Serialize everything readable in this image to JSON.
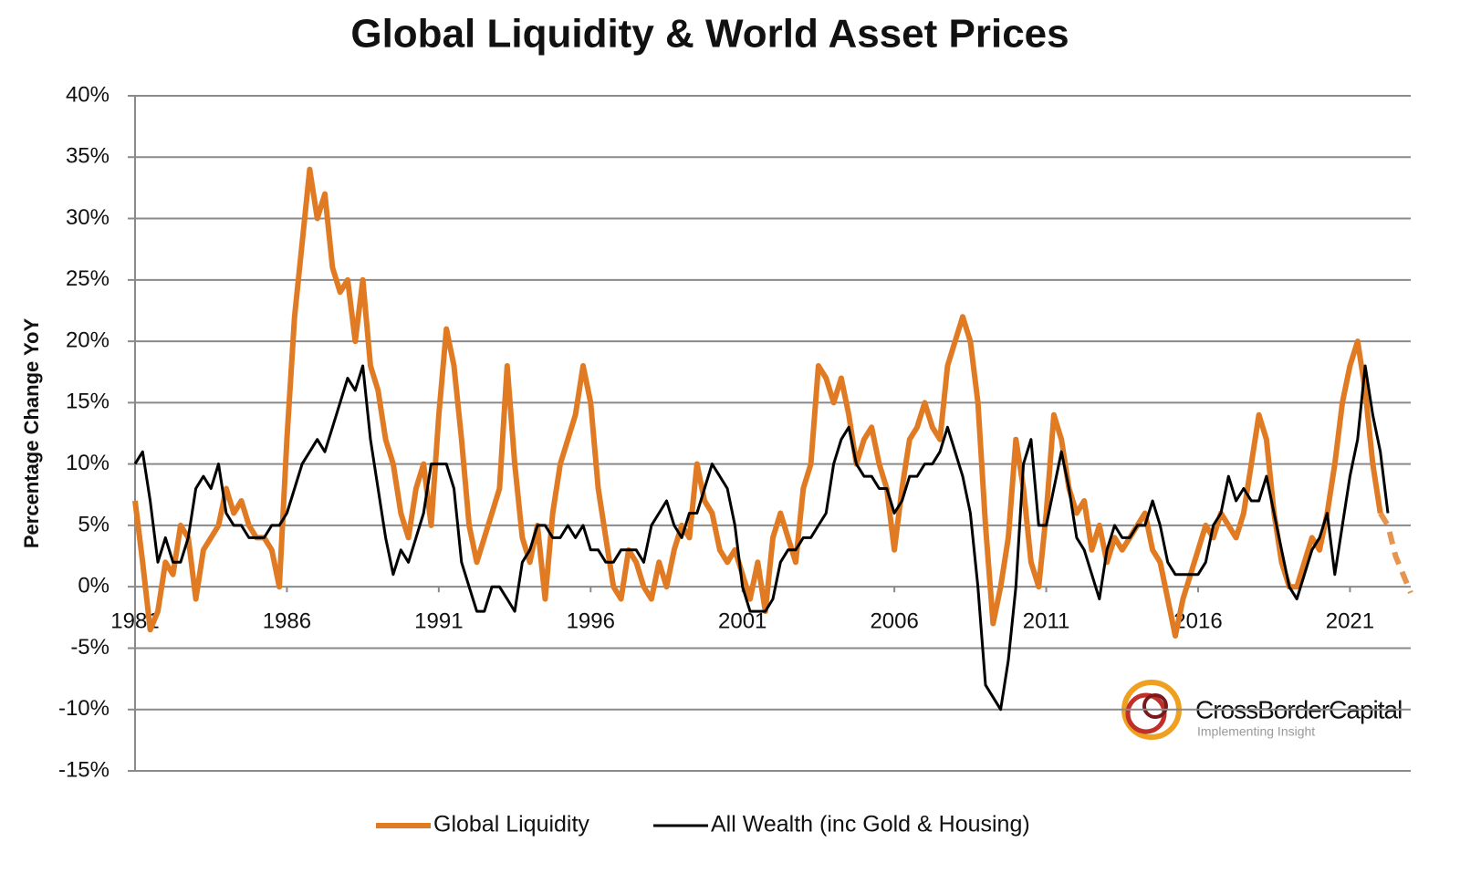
{
  "chart_data": {
    "type": "line",
    "title": "Global Liquidity & World Asset Prices",
    "y_label": "Percentage Change YoY",
    "xlim": [
      1981,
      2023
    ],
    "xticks": [
      1981,
      1986,
      1991,
      1996,
      2001,
      2006,
      2011,
      2016,
      2021
    ],
    "ylim": [
      -15,
      40
    ],
    "yticks": [
      {
        "value": 40,
        "label": "40%"
      },
      {
        "value": 35,
        "label": "35%"
      },
      {
        "value": 30,
        "label": "30%"
      },
      {
        "value": 25,
        "label": "25%"
      },
      {
        "value": 20,
        "label": "20%"
      },
      {
        "value": 15,
        "label": "15%"
      },
      {
        "value": 10,
        "label": "10%"
      },
      {
        "value": 5,
        "label": "5%"
      },
      {
        "value": 0,
        "label": "0%"
      },
      {
        "value": -5,
        "label": "-5%"
      },
      {
        "value": -10,
        "label": "-10%"
      },
      {
        "value": -15,
        "label": "-15%"
      }
    ],
    "grid": true,
    "legend": "bottom",
    "logo": {
      "name": "CrossBorderCapital",
      "tagline": "Implementing Insight"
    },
    "series": [
      {
        "name": "Global Liquidity",
        "color": "#e07b24",
        "dash_from": 2022,
        "x": [
          1981,
          1981.25,
          1981.5,
          1981.75,
          1982,
          1982.25,
          1982.5,
          1982.75,
          1983,
          1983.25,
          1983.5,
          1983.75,
          1984,
          1984.25,
          1984.5,
          1984.75,
          1985,
          1985.25,
          1985.5,
          1985.75,
          1986,
          1986.25,
          1986.5,
          1986.75,
          1987,
          1987.25,
          1987.5,
          1987.75,
          1988,
          1988.25,
          1988.5,
          1988.75,
          1989,
          1989.25,
          1989.5,
          1989.75,
          1990,
          1990.25,
          1990.5,
          1990.75,
          1991,
          1991.25,
          1991.5,
          1991.75,
          1992,
          1992.25,
          1992.5,
          1992.75,
          1993,
          1993.25,
          1993.5,
          1993.75,
          1994,
          1994.25,
          1994.5,
          1994.75,
          1995,
          1995.25,
          1995.5,
          1995.75,
          1996,
          1996.25,
          1996.5,
          1996.75,
          1997,
          1997.25,
          1997.5,
          1997.75,
          1998,
          1998.25,
          1998.5,
          1998.75,
          1999,
          1999.25,
          1999.5,
          1999.75,
          2000,
          2000.25,
          2000.5,
          2000.75,
          2001,
          2001.25,
          2001.5,
          2001.75,
          2002,
          2002.25,
          2002.5,
          2002.75,
          2003,
          2003.25,
          2003.5,
          2003.75,
          2004,
          2004.25,
          2004.5,
          2004.75,
          2005,
          2005.25,
          2005.5,
          2005.75,
          2006,
          2006.25,
          2006.5,
          2006.75,
          2007,
          2007.25,
          2007.5,
          2007.75,
          2008,
          2008.25,
          2008.5,
          2008.75,
          2009,
          2009.25,
          2009.5,
          2009.75,
          2010,
          2010.25,
          2010.5,
          2010.75,
          2011,
          2011.25,
          2011.5,
          2011.75,
          2012,
          2012.25,
          2012.5,
          2012.75,
          2013,
          2013.25,
          2013.5,
          2013.75,
          2014,
          2014.25,
          2014.5,
          2014.75,
          2015,
          2015.25,
          2015.5,
          2015.75,
          2016,
          2016.25,
          2016.5,
          2016.75,
          2017,
          2017.25,
          2017.5,
          2017.75,
          2018,
          2018.25,
          2018.5,
          2018.75,
          2019,
          2019.25,
          2019.5,
          2019.75,
          2020,
          2020.25,
          2020.5,
          2020.75,
          2021,
          2021.25,
          2021.5,
          2021.75,
          2022,
          2022.25,
          2022.5,
          2022.75,
          2023
        ],
        "values": [
          7,
          2,
          -3.5,
          -2,
          2,
          1,
          5,
          4,
          -1,
          3,
          4,
          5,
          8,
          6,
          7,
          5,
          4,
          4,
          3,
          0,
          12,
          22,
          28,
          34,
          30,
          32,
          26,
          24,
          25,
          20,
          25,
          18,
          16,
          12,
          10,
          6,
          4,
          8,
          10,
          5,
          14,
          21,
          18,
          12,
          5,
          2,
          4,
          6,
          8,
          18,
          10,
          4,
          2,
          5,
          -1,
          6,
          10,
          12,
          14,
          18,
          15,
          8,
          4,
          0,
          -1,
          3,
          2,
          0,
          -1,
          2,
          0,
          3,
          5,
          4,
          10,
          7,
          6,
          3,
          2,
          3,
          1,
          -1,
          2,
          -2,
          4,
          6,
          4,
          2,
          8,
          10,
          18,
          17,
          15,
          17,
          14,
          10,
          12,
          13,
          10,
          8,
          3,
          8,
          12,
          13,
          15,
          13,
          12,
          18,
          20,
          22,
          20,
          15,
          5,
          -3,
          0,
          4,
          12,
          8,
          2,
          0,
          6,
          14,
          12,
          8,
          6,
          7,
          3,
          5,
          2,
          4,
          3,
          4,
          5,
          6,
          3,
          2,
          -1,
          -4,
          -1,
          1,
          3,
          5,
          4,
          6,
          5,
          4,
          6,
          10,
          14,
          12,
          6,
          2,
          0,
          0,
          2,
          4,
          3,
          6,
          10,
          15,
          18,
          20,
          16,
          10,
          6,
          5,
          2.5,
          1,
          -0.5
        ]
      },
      {
        "name": "All Wealth (inc Gold & Housing)",
        "color": "#000000",
        "x": [
          1981,
          1981.25,
          1981.5,
          1981.75,
          1982,
          1982.25,
          1982.5,
          1982.75,
          1983,
          1983.25,
          1983.5,
          1983.75,
          1984,
          1984.25,
          1984.5,
          1984.75,
          1985,
          1985.25,
          1985.5,
          1985.75,
          1986,
          1986.25,
          1986.5,
          1986.75,
          1987,
          1987.25,
          1987.5,
          1987.75,
          1988,
          1988.25,
          1988.5,
          1988.75,
          1989,
          1989.25,
          1989.5,
          1989.75,
          1990,
          1990.25,
          1990.5,
          1990.75,
          1991,
          1991.25,
          1991.5,
          1991.75,
          1992,
          1992.25,
          1992.5,
          1992.75,
          1993,
          1993.25,
          1993.5,
          1993.75,
          1994,
          1994.25,
          1994.5,
          1994.75,
          1995,
          1995.25,
          1995.5,
          1995.75,
          1996,
          1996.25,
          1996.5,
          1996.75,
          1997,
          1997.25,
          1997.5,
          1997.75,
          1998,
          1998.25,
          1998.5,
          1998.75,
          1999,
          1999.25,
          1999.5,
          1999.75,
          2000,
          2000.25,
          2000.5,
          2000.75,
          2001,
          2001.25,
          2001.5,
          2001.75,
          2002,
          2002.25,
          2002.5,
          2002.75,
          2003,
          2003.25,
          2003.5,
          2003.75,
          2004,
          2004.25,
          2004.5,
          2004.75,
          2005,
          2005.25,
          2005.5,
          2005.75,
          2006,
          2006.25,
          2006.5,
          2006.75,
          2007,
          2007.25,
          2007.5,
          2007.75,
          2008,
          2008.25,
          2008.5,
          2008.75,
          2009,
          2009.25,
          2009.5,
          2009.75,
          2010,
          2010.25,
          2010.5,
          2010.75,
          2011,
          2011.25,
          2011.5,
          2011.75,
          2012,
          2012.25,
          2012.5,
          2012.75,
          2013,
          2013.25,
          2013.5,
          2013.75,
          2014,
          2014.25,
          2014.5,
          2014.75,
          2015,
          2015.25,
          2015.5,
          2015.75,
          2016,
          2016.25,
          2016.5,
          2016.75,
          2017,
          2017.25,
          2017.5,
          2017.75,
          2018,
          2018.25,
          2018.5,
          2018.75,
          2019,
          2019.25,
          2019.5,
          2019.75,
          2020,
          2020.25,
          2020.5,
          2020.75,
          2021,
          2021.25,
          2021.5,
          2021.75,
          2022,
          2022.25
        ],
        "values": [
          10,
          11,
          7,
          2,
          4,
          2,
          2,
          4,
          8,
          9,
          8,
          10,
          6,
          5,
          5,
          4,
          4,
          4,
          5,
          5,
          6,
          8,
          10,
          11,
          12,
          11,
          13,
          15,
          17,
          16,
          18,
          12,
          8,
          4,
          1,
          3,
          2,
          4,
          6,
          10,
          10,
          10,
          8,
          2,
          0,
          -2,
          -2,
          0,
          0,
          -1,
          -2,
          2,
          3,
          5,
          5,
          4,
          4,
          5,
          4,
          5,
          3,
          3,
          2,
          2,
          3,
          3,
          3,
          2,
          5,
          6,
          7,
          5,
          4,
          6,
          6,
          8,
          10,
          9,
          8,
          5,
          0,
          -2,
          -2,
          -2,
          -1,
          2,
          3,
          3,
          4,
          4,
          5,
          6,
          10,
          12,
          13,
          10,
          9,
          9,
          8,
          8,
          6,
          7,
          9,
          9,
          10,
          10,
          11,
          13,
          11,
          9,
          6,
          0,
          -8,
          -9,
          -10,
          -6,
          0,
          10,
          12,
          5,
          5,
          8,
          11,
          8,
          4,
          3,
          1,
          -1,
          3,
          5,
          4,
          4,
          5,
          5,
          7,
          5,
          2,
          1,
          1,
          1,
          1,
          2,
          5,
          6,
          9,
          7,
          8,
          7,
          7,
          9,
          6,
          3,
          0,
          -1,
          1,
          3,
          4,
          6,
          1,
          5,
          9,
          12,
          18,
          14,
          11,
          6
        ]
      }
    ]
  }
}
